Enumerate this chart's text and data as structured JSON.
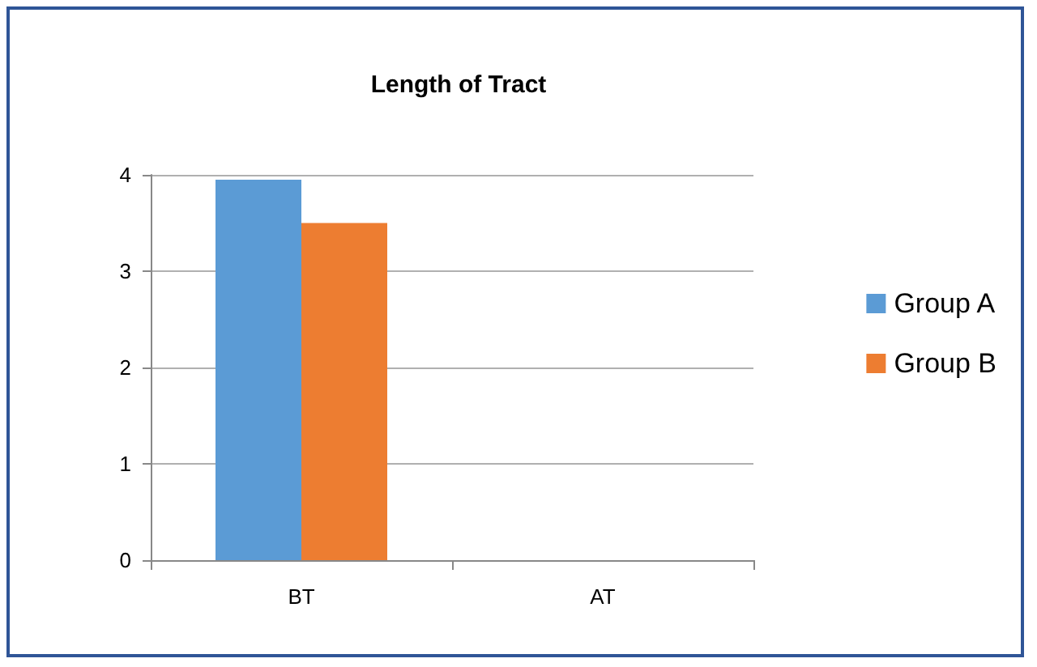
{
  "chart_data": {
    "type": "bar",
    "title": "Length of Tract",
    "categories": [
      "BT",
      "AT"
    ],
    "series": [
      {
        "name": "Group A",
        "color": "#5b9bd5",
        "values": [
          3.95,
          null
        ]
      },
      {
        "name": "Group B",
        "color": "#ed7d31",
        "values": [
          3.5,
          null
        ]
      }
    ],
    "ylim": [
      0,
      4
    ],
    "yticks": [
      0,
      1,
      2,
      3,
      4
    ],
    "grid": "y",
    "legend": "right"
  }
}
